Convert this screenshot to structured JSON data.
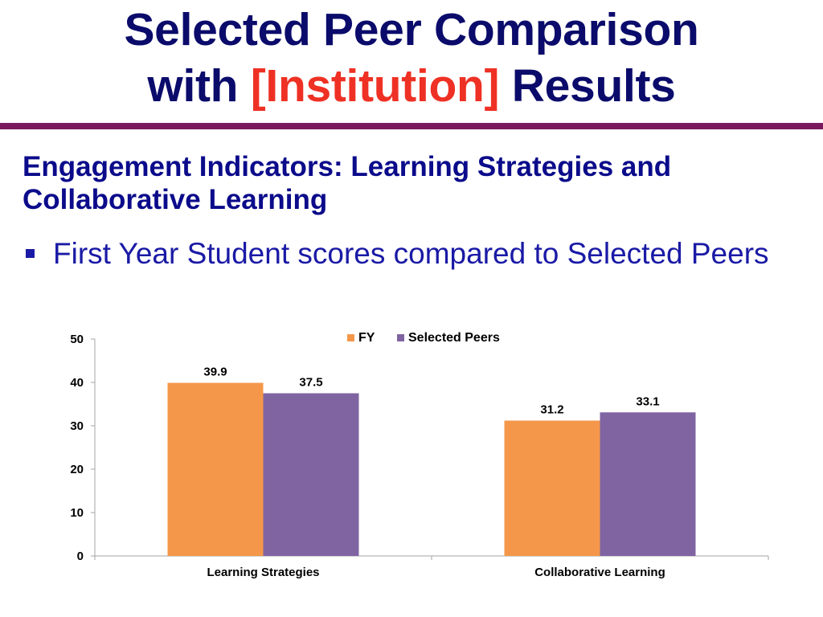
{
  "slide": {
    "title_line1": "Selected Peer Comparison",
    "title_line2_prefix": "with",
    "title_line2_accent": "[Institution]",
    "title_line2_suffix": "Results",
    "subheading": "Engagement Indicators: Learning Strategies and Collaborative Learning",
    "bullet": "First Year Student scores compared to Selected Peers"
  },
  "colors": {
    "title": "#0b0b6b",
    "accent": "#ee3124",
    "rule": "#7a1a5c",
    "fy": "#f4974a",
    "peers": "#8064a2"
  },
  "chart_data": {
    "type": "bar",
    "categories": [
      "Learning Strategies",
      "Collaborative Learning"
    ],
    "series": [
      {
        "name": "FY",
        "values": [
          39.9,
          31.2
        ],
        "color": "#f4974a"
      },
      {
        "name": "Selected Peers",
        "values": [
          37.5,
          33.1
        ],
        "color": "#8064a2"
      }
    ],
    "ylim": [
      0,
      50
    ],
    "yticks": [
      0,
      10,
      20,
      30,
      40,
      50
    ],
    "title": "",
    "xlabel": "",
    "ylabel": "",
    "legend": "top-right",
    "grid": false,
    "data_labels": true
  }
}
